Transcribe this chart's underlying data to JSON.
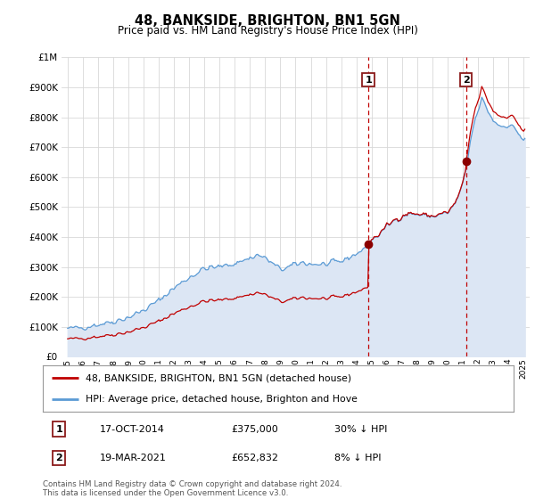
{
  "title": "48, BANKSIDE, BRIGHTON, BN1 5GN",
  "subtitle": "Price paid vs. HM Land Registry's House Price Index (HPI)",
  "legend_label_red": "48, BANKSIDE, BRIGHTON, BN1 5GN (detached house)",
  "legend_label_blue": "HPI: Average price, detached house, Brighton and Hove",
  "sale1_label": "1",
  "sale1_date": "17-OCT-2014",
  "sale1_price": "£375,000",
  "sale1_note": "30% ↓ HPI",
  "sale1_year": 2014.79,
  "sale1_value": 375000,
  "sale2_label": "2",
  "sale2_date": "19-MAR-2021",
  "sale2_price": "£652,832",
  "sale2_note": "8% ↓ HPI",
  "sale2_year": 2021.21,
  "sale2_value": 652832,
  "footnote": "Contains HM Land Registry data © Crown copyright and database right 2024.\nThis data is licensed under the Open Government Licence v3.0.",
  "ylim_max": 1000000,
  "hpi_color": "#5b9bd5",
  "hpi_fill_color": "#dce6f4",
  "sale_color": "#c00000",
  "marker_color": "#8b0000",
  "vline_color": "#c00000",
  "box_edge_color": "#8b1a1a",
  "grid_color": "#d8d8d8",
  "bg_color": "#ffffff"
}
